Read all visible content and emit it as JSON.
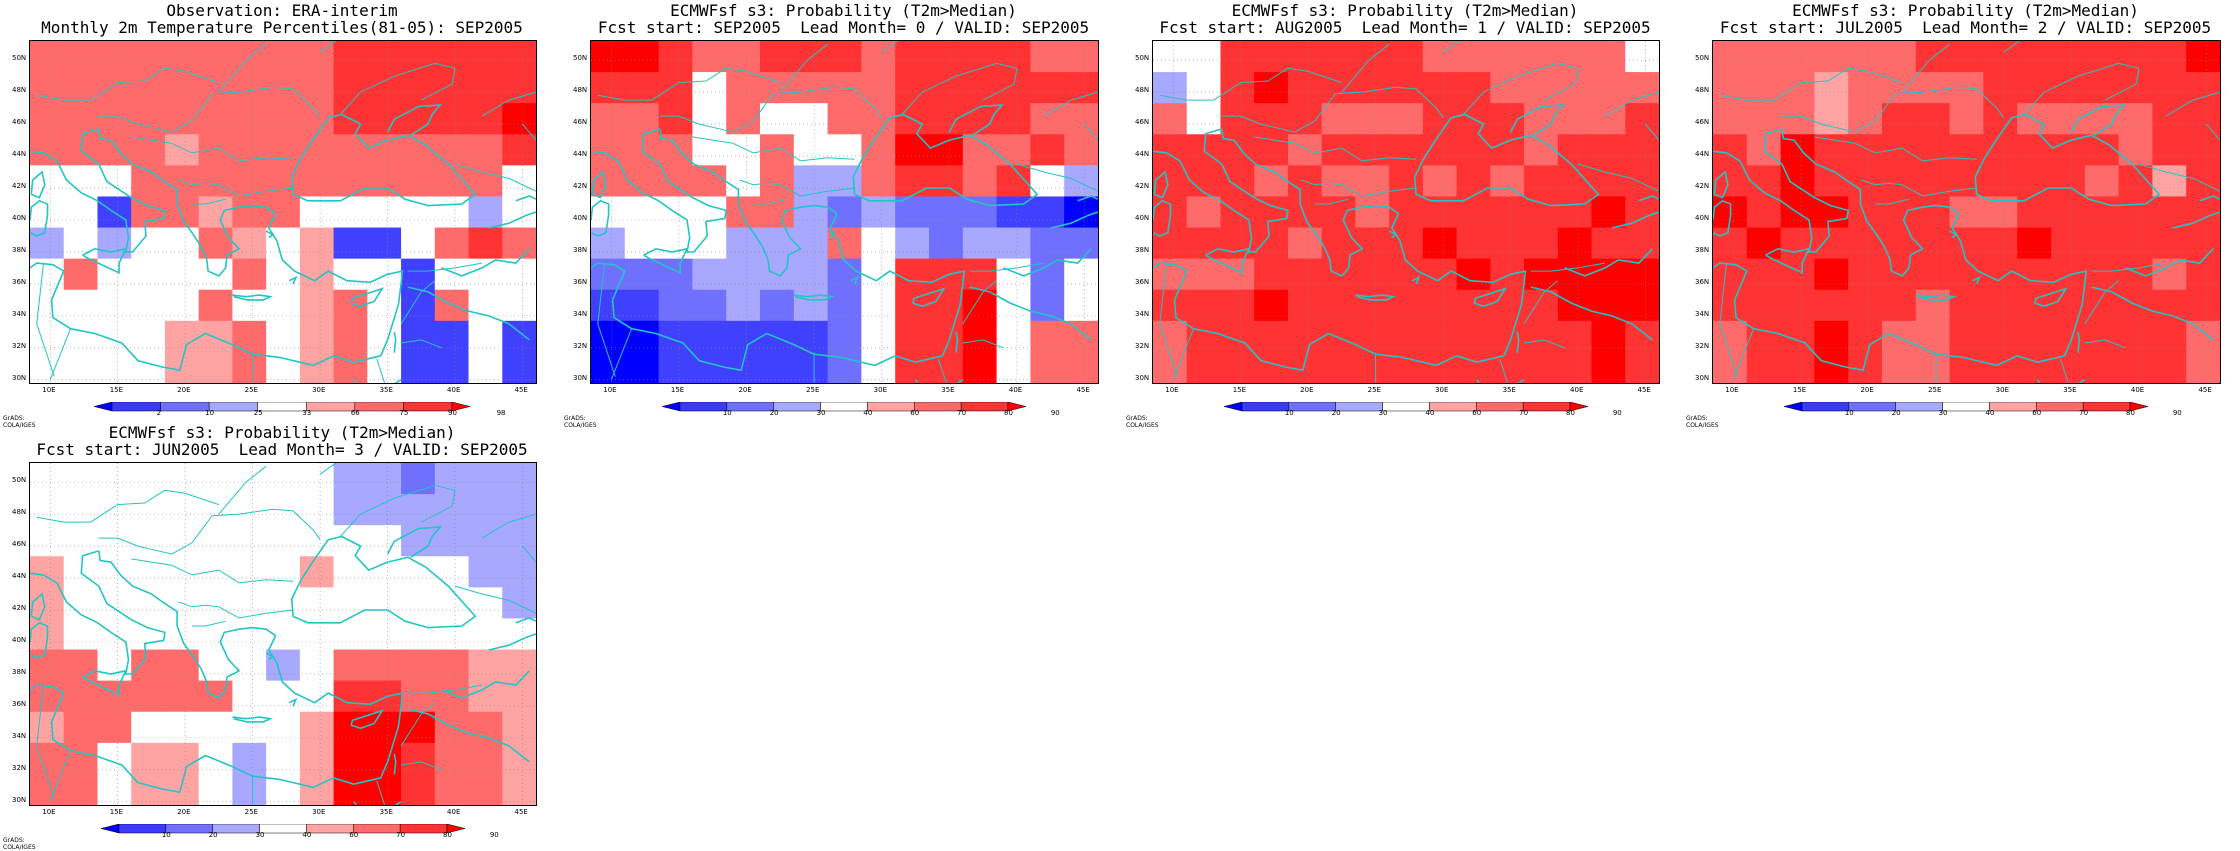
{
  "credit": "GrADS: COLA/IGES",
  "y_labels": [
    "50N",
    "48N",
    "46N",
    "44N",
    "42N",
    "40N",
    "38N",
    "36N",
    "34N",
    "32N",
    "30N"
  ],
  "x_labels": [
    "10E",
    "15E",
    "20E",
    "25E",
    "30E",
    "35E",
    "40E",
    "45E"
  ],
  "colors": {
    "coast": "#22c4c4",
    "deep_red": "#ff0000",
    "deep_blue": "#0000ff"
  },
  "legend_obs": {
    "ticks": [
      "2",
      "10",
      "25",
      "33",
      "66",
      "75",
      "90",
      "98"
    ]
  },
  "legend_prob": {
    "ticks": [
      "10",
      "20",
      "30",
      "40",
      "60",
      "70",
      "80",
      "90"
    ]
  },
  "panels": [
    {
      "title1": "Observation: ERA-interim",
      "title2": "Monthly 2m Temperature Percentiles(81-05): SEP2005"
    },
    {
      "title1": "ECMWFsf s3: Probability (T2m>Median)",
      "title2": "Fcst start: SEP2005  Lead Month= 0 / VALID: SEP2005"
    },
    {
      "title1": "ECMWFsf s3: Probability (T2m>Median)",
      "title2": "Fcst start: AUG2005  Lead Month= 1 / VALID: SEP2005"
    },
    {
      "title1": "ECMWFsf s3: Probability (T2m>Median)",
      "title2": "Fcst start: JUL2005  Lead Month= 2 / VALID: SEP2005"
    },
    {
      "title1": "ECMWFsf s3: Probability (T2m>Median)",
      "title2": "Fcst start: JUN2005  Lead Month= 3 / VALID: SEP2005"
    }
  ],
  "chart_data": {
    "type": "heatmap",
    "x_range": [
      8.5,
      46
    ],
    "y_range": [
      29.8,
      51.2
    ],
    "grid_rows_lat_desc": [
      "51-49",
      "49-47",
      "47-45",
      "45-43",
      "43-41",
      "41-39",
      "39-37",
      "37-35",
      "35-33",
      "33-31",
      "31-29"
    ],
    "grid_cols_lon": [
      "8.5-11",
      "11-13.5",
      "13.5-16",
      "16-18.5",
      "18.5-21",
      "21-23.5",
      "23.5-26",
      "26-28.5",
      "28.5-31",
      "31-33.5",
      "33.5-36",
      "36-38.5",
      "38.5-41",
      "41-43.5",
      "43.5-46"
    ],
    "color_levels_note": "0=white, 1=light red, 2=medium red, 3=strong red, 4=deep red, -1=light blue, -2=medium blue, -3=strong blue, -4=deep blue",
    "panels": [
      [
        [
          2,
          2,
          2,
          2,
          2,
          2,
          2,
          2,
          2,
          3,
          3,
          3,
          3,
          3,
          3
        ],
        [
          2,
          2,
          2,
          2,
          2,
          2,
          2,
          2,
          2,
          3,
          3,
          3,
          3,
          3,
          3
        ],
        [
          2,
          2,
          2,
          2,
          2,
          2,
          2,
          2,
          2,
          3,
          3,
          3,
          3,
          3,
          4
        ],
        [
          2,
          2,
          2,
          2,
          1,
          2,
          2,
          2,
          2,
          2,
          2,
          2,
          2,
          2,
          3
        ],
        [
          0,
          0,
          0,
          2,
          2,
          2,
          2,
          2,
          2,
          2,
          2,
          2,
          2,
          2,
          0
        ],
        [
          0,
          0,
          -3,
          2,
          2,
          1,
          2,
          2,
          0,
          0,
          0,
          0,
          0,
          -1,
          0
        ],
        [
          -1,
          0,
          -1,
          0,
          0,
          2,
          1,
          0,
          1,
          -3,
          -3,
          0,
          2,
          3,
          2
        ],
        [
          0,
          2,
          0,
          0,
          0,
          0,
          2,
          0,
          1,
          0,
          0,
          -3,
          0,
          0,
          0
        ],
        [
          0,
          0,
          0,
          0,
          0,
          2,
          0,
          0,
          1,
          2,
          0,
          -3,
          2,
          0,
          0
        ],
        [
          0,
          0,
          0,
          0,
          1,
          1,
          2,
          0,
          1,
          2,
          0,
          -3,
          -3,
          0,
          -3
        ],
        [
          0,
          0,
          0,
          0,
          1,
          1,
          2,
          0,
          1,
          2,
          0,
          -3,
          -3,
          0,
          -3
        ]
      ],
      [
        [
          4,
          4,
          3,
          2,
          2,
          3,
          3,
          3,
          2,
          3,
          3,
          3,
          3,
          2,
          2
        ],
        [
          3,
          3,
          3,
          0,
          2,
          2,
          2,
          2,
          2,
          3,
          3,
          3,
          3,
          3,
          3
        ],
        [
          2,
          2,
          3,
          0,
          2,
          0,
          0,
          2,
          2,
          3,
          3,
          3,
          3,
          2,
          2
        ],
        [
          2,
          2,
          2,
          0,
          0,
          2,
          0,
          0,
          2,
          4,
          4,
          2,
          2,
          3,
          2
        ],
        [
          2,
          2,
          2,
          2,
          0,
          2,
          -1,
          -1,
          2,
          3,
          3,
          2,
          3,
          0,
          -1
        ],
        [
          0,
          0,
          0,
          0,
          2,
          2,
          -1,
          -2,
          -1,
          -2,
          -2,
          -2,
          -3,
          -3,
          -4
        ],
        [
          -1,
          0,
          0,
          0,
          -1,
          -1,
          -1,
          2,
          0,
          -1,
          -2,
          -1,
          -1,
          -2,
          -2
        ],
        [
          -2,
          -2,
          -2,
          -1,
          -1,
          -1,
          -1,
          -2,
          0,
          3,
          3,
          3,
          0,
          -2,
          0
        ],
        [
          -3,
          -3,
          -2,
          -2,
          -1,
          -2,
          -1,
          -2,
          0,
          3,
          3,
          4,
          0,
          -2,
          0
        ],
        [
          -4,
          -4,
          -3,
          -3,
          -3,
          -3,
          -3,
          -2,
          0,
          3,
          3,
          4,
          0,
          2,
          2
        ],
        [
          -4,
          -4,
          -3,
          -3,
          -3,
          -3,
          -3,
          -2,
          0,
          3,
          3,
          4,
          0,
          2,
          2
        ]
      ],
      [
        [
          0,
          0,
          3,
          3,
          3,
          3,
          3,
          3,
          2,
          2,
          2,
          2,
          2,
          2,
          0
        ],
        [
          -1,
          0,
          3,
          4,
          3,
          3,
          3,
          3,
          3,
          3,
          2,
          2,
          2,
          2,
          2
        ],
        [
          2,
          0,
          3,
          3,
          3,
          2,
          2,
          2,
          3,
          3,
          3,
          2,
          2,
          2,
          3
        ],
        [
          3,
          3,
          3,
          3,
          2,
          3,
          3,
          3,
          3,
          3,
          3,
          2,
          3,
          3,
          3
        ],
        [
          3,
          3,
          3,
          2,
          3,
          2,
          2,
          3,
          2,
          3,
          2,
          3,
          3,
          3,
          3
        ],
        [
          3,
          2,
          3,
          3,
          3,
          3,
          2,
          3,
          3,
          3,
          3,
          3,
          3,
          4,
          3
        ],
        [
          3,
          3,
          3,
          3,
          2,
          3,
          3,
          3,
          4,
          3,
          3,
          3,
          4,
          3,
          3
        ],
        [
          2,
          2,
          2,
          3,
          3,
          3,
          3,
          3,
          3,
          4,
          3,
          4,
          4,
          4,
          4
        ],
        [
          3,
          3,
          3,
          4,
          3,
          3,
          3,
          3,
          3,
          3,
          3,
          3,
          4,
          4,
          4
        ],
        [
          2,
          3,
          3,
          3,
          3,
          3,
          3,
          3,
          3,
          3,
          3,
          3,
          3,
          4,
          3
        ],
        [
          2,
          3,
          3,
          3,
          3,
          3,
          3,
          3,
          3,
          3,
          3,
          3,
          3,
          4,
          3
        ]
      ],
      [
        [
          2,
          2,
          2,
          2,
          2,
          2,
          3,
          3,
          3,
          3,
          3,
          3,
          3,
          3,
          4
        ],
        [
          2,
          2,
          2,
          1,
          2,
          2,
          2,
          2,
          3,
          3,
          3,
          3,
          3,
          3,
          3
        ],
        [
          2,
          2,
          2,
          1,
          2,
          3,
          3,
          2,
          3,
          2,
          2,
          2,
          2,
          3,
          3
        ],
        [
          3,
          2,
          4,
          3,
          3,
          3,
          3,
          3,
          3,
          3,
          3,
          3,
          2,
          3,
          3
        ],
        [
          3,
          3,
          4,
          3,
          3,
          3,
          3,
          3,
          3,
          3,
          3,
          2,
          3,
          1,
          3
        ],
        [
          4,
          3,
          4,
          4,
          3,
          3,
          3,
          2,
          2,
          3,
          3,
          3,
          3,
          3,
          3
        ],
        [
          3,
          4,
          3,
          3,
          3,
          3,
          3,
          3,
          3,
          4,
          3,
          3,
          3,
          3,
          3
        ],
        [
          3,
          3,
          3,
          4,
          3,
          3,
          3,
          3,
          3,
          3,
          3,
          3,
          3,
          2,
          3
        ],
        [
          3,
          3,
          3,
          3,
          3,
          3,
          2,
          3,
          3,
          3,
          3,
          3,
          3,
          3,
          3
        ],
        [
          2,
          3,
          3,
          4,
          3,
          2,
          2,
          3,
          3,
          3,
          3,
          3,
          3,
          3,
          2
        ],
        [
          2,
          3,
          3,
          4,
          3,
          2,
          2,
          3,
          3,
          3,
          3,
          3,
          3,
          3,
          2
        ]
      ],
      [
        [
          0,
          0,
          0,
          0,
          0,
          0,
          0,
          0,
          0,
          -1,
          -1,
          -2,
          -1,
          -1,
          -1
        ],
        [
          0,
          0,
          0,
          0,
          0,
          0,
          0,
          0,
          0,
          -1,
          -1,
          -1,
          -1,
          -1,
          -1
        ],
        [
          0,
          0,
          0,
          0,
          0,
          0,
          0,
          0,
          0,
          0,
          0,
          -1,
          -1,
          -1,
          -1
        ],
        [
          1,
          0,
          0,
          0,
          0,
          0,
          0,
          0,
          1,
          0,
          0,
          0,
          0,
          -1,
          -1
        ],
        [
          1,
          0,
          0,
          0,
          0,
          0,
          0,
          0,
          0,
          0,
          0,
          0,
          0,
          0,
          -1
        ],
        [
          1,
          0,
          0,
          0,
          0,
          0,
          0,
          0,
          0,
          0,
          0,
          0,
          0,
          0,
          0
        ],
        [
          2,
          2,
          0,
          2,
          2,
          0,
          0,
          -1,
          0,
          2,
          2,
          2,
          2,
          1,
          1
        ],
        [
          2,
          2,
          2,
          2,
          2,
          2,
          0,
          0,
          0,
          3,
          3,
          2,
          2,
          1,
          1
        ],
        [
          1,
          2,
          2,
          0,
          0,
          0,
          0,
          0,
          1,
          4,
          4,
          4,
          2,
          2,
          1
        ],
        [
          2,
          2,
          0,
          1,
          1,
          0,
          -1,
          0,
          1,
          4,
          4,
          3,
          2,
          2,
          1
        ],
        [
          2,
          2,
          0,
          1,
          1,
          0,
          -1,
          0,
          1,
          4,
          4,
          3,
          2,
          2,
          1
        ]
      ]
    ]
  }
}
